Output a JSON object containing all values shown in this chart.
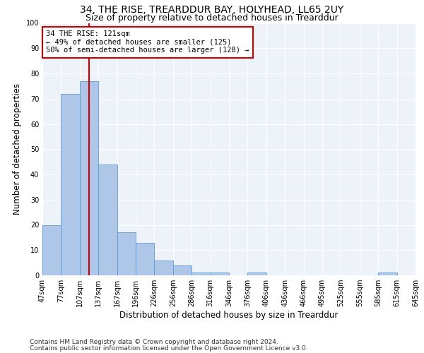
{
  "title": "34, THE RISE, TREARDDUR BAY, HOLYHEAD, LL65 2UY",
  "subtitle": "Size of property relative to detached houses in Trearddur",
  "xlabel": "Distribution of detached houses by size in Trearddur",
  "ylabel": "Number of detached properties",
  "bar_values": [
    20,
    72,
    77,
    44,
    17,
    13,
    6,
    4,
    1,
    1,
    0,
    1,
    0,
    0,
    0,
    0,
    0,
    0,
    1,
    0
  ],
  "bin_labels": [
    "47sqm",
    "77sqm",
    "107sqm",
    "137sqm",
    "167sqm",
    "196sqm",
    "226sqm",
    "256sqm",
    "286sqm",
    "316sqm",
    "346sqm",
    "376sqm",
    "406sqm",
    "436sqm",
    "466sqm",
    "495sqm",
    "525sqm",
    "555sqm",
    "585sqm",
    "615sqm",
    "645sqm"
  ],
  "bar_color": "#aec6e8",
  "bar_edge_color": "#5b9bd5",
  "vline_bin_index": 2,
  "vline_color": "#cc0000",
  "annotation_line1": "34 THE RISE: 121sqm",
  "annotation_line2": "← 49% of detached houses are smaller (125)",
  "annotation_line3": "50% of semi-detached houses are larger (128) →",
  "annotation_box_color": "#ffffff",
  "annotation_box_edge": "#cc0000",
  "ylim": [
    0,
    100
  ],
  "yticks": [
    0,
    10,
    20,
    30,
    40,
    50,
    60,
    70,
    80,
    90,
    100
  ],
  "background_color": "#eef2f9",
  "footer_line1": "Contains HM Land Registry data © Crown copyright and database right 2024.",
  "footer_line2": "Contains public sector information licensed under the Open Government Licence v3.0.",
  "title_fontsize": 10,
  "subtitle_fontsize": 9,
  "axis_label_fontsize": 8.5,
  "tick_fontsize": 7,
  "annotation_fontsize": 7.5,
  "footer_fontsize": 6.5
}
